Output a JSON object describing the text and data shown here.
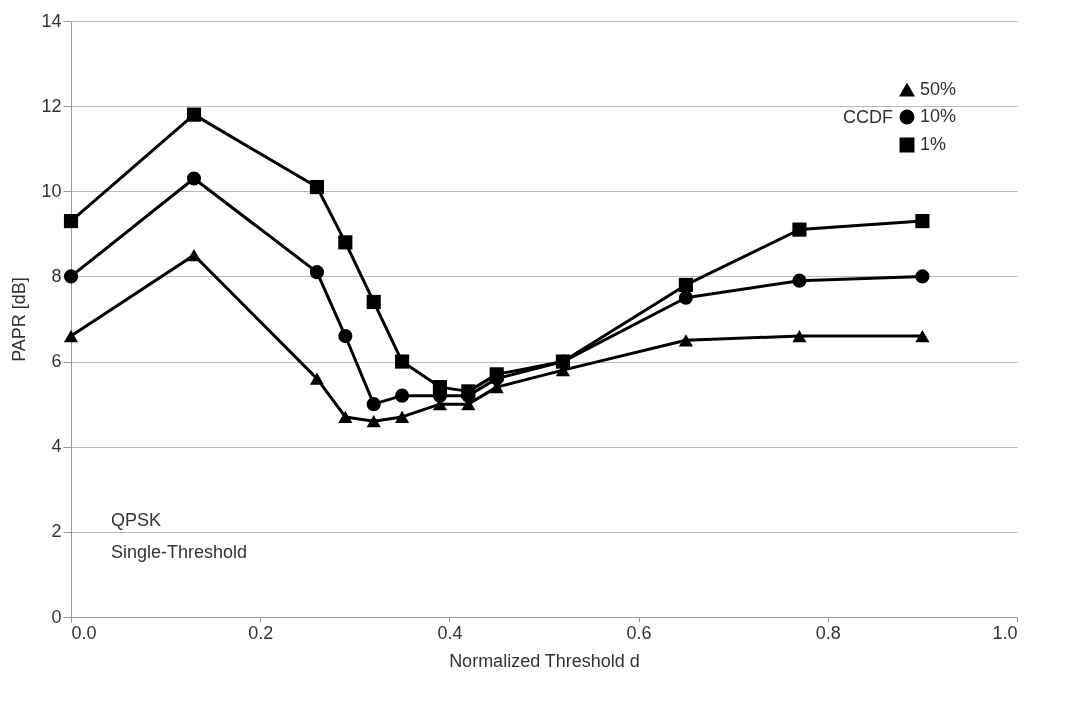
{
  "chart_data": {
    "type": "line",
    "xlabel": "Normalized Threshold d",
    "ylabel": "PAPR [dB]",
    "legend_title": "CCDF",
    "x": [
      0,
      0.13,
      0.26,
      0.29,
      0.32,
      0.35,
      0.39,
      0.42,
      0.45,
      0.52,
      0.65,
      0.77,
      0.9
    ],
    "series": [
      {
        "name": "50%",
        "color": "#000000",
        "marker": "triangle",
        "values": [
          6.6,
          8.5,
          5.6,
          4.7,
          4.6,
          4.7,
          5.0,
          5.0,
          5.4,
          5.8,
          6.5,
          6.6,
          6.6
        ]
      },
      {
        "name": "10%",
        "color": "#000000",
        "marker": "circle",
        "values": [
          8.0,
          10.3,
          8.1,
          6.6,
          5.0,
          5.2,
          5.2,
          5.2,
          5.6,
          6.0,
          7.5,
          7.9,
          8.0
        ]
      },
      {
        "name": "1%",
        "color": "#000000",
        "marker": "square",
        "values": [
          9.3,
          11.8,
          10.1,
          8.8,
          7.4,
          6.0,
          5.4,
          5.3,
          5.7,
          6.0,
          7.8,
          9.1,
          9.3
        ]
      }
    ],
    "xlim": [
      0,
      1
    ],
    "xticks": [
      {
        "value": 0,
        "label": "0.0"
      },
      0.2,
      0.4,
      0.6,
      0.8,
      {
        "value": 1,
        "label": "1.0"
      }
    ],
    "ylim": [
      0,
      14
    ],
    "yticks": [
      0,
      2,
      4,
      6,
      8,
      10,
      12,
      14
    ],
    "grid": "y",
    "legend": "top right",
    "line_style": "solid",
    "annotations": [
      "QPSK\nSingle-Threshold"
    ]
  }
}
